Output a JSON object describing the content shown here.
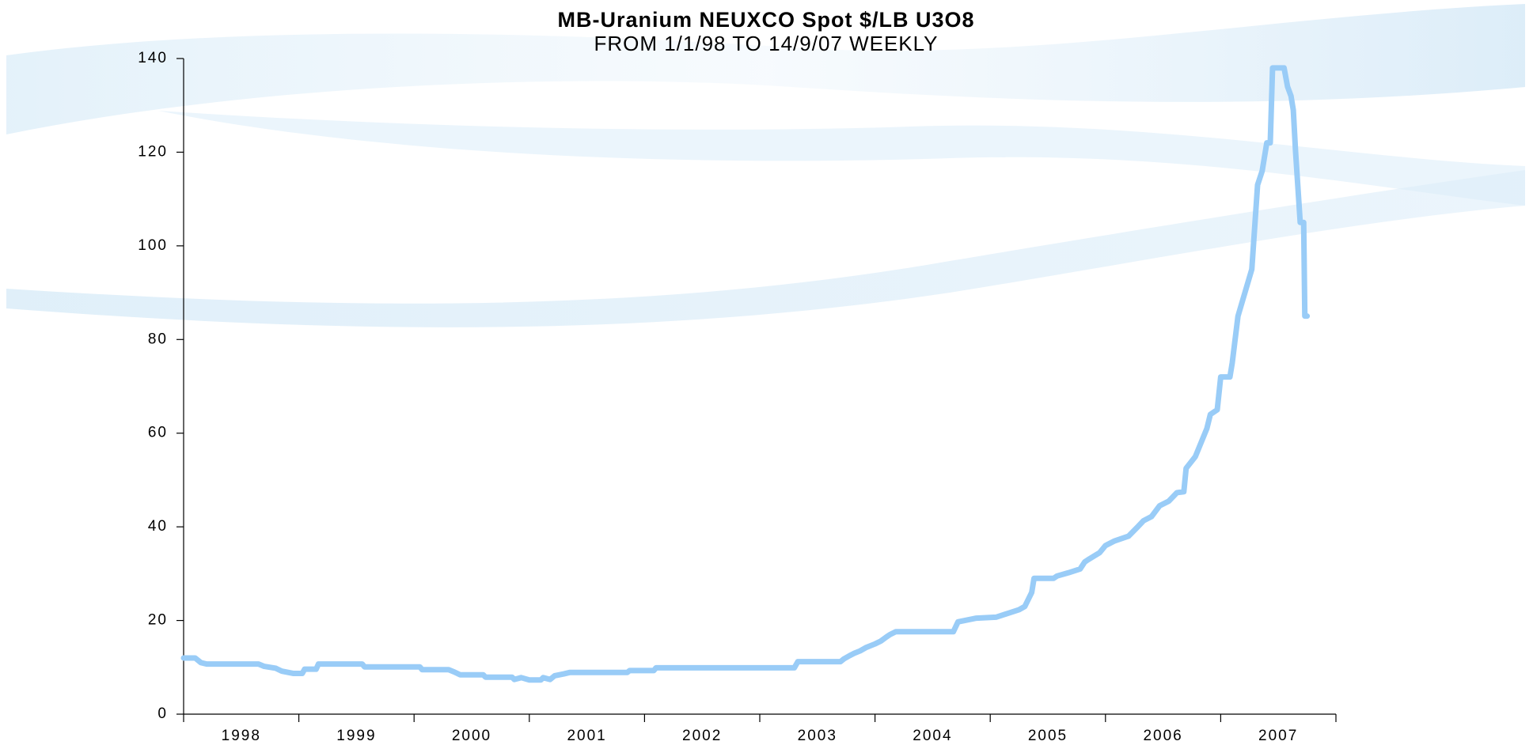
{
  "chart_data": {
    "type": "line",
    "title": "MB-Uranium NEUXCO Spot $/LB U3O8",
    "subtitle": "FROM 1/1/98 TO 14/9/07 WEEKLY",
    "xlim": [
      1998,
      2008
    ],
    "xticks": [
      1998,
      1999,
      2000,
      2001,
      2002,
      2003,
      2004,
      2005,
      2006,
      2007,
      2008
    ],
    "year_labels": [
      "1998",
      "1999",
      "2000",
      "2001",
      "2002",
      "2003",
      "2004",
      "2005",
      "2006",
      "2007"
    ],
    "ylim": [
      0,
      140
    ],
    "yticks": [
      0,
      20,
      40,
      60,
      80,
      100,
      120,
      140
    ],
    "grid": false,
    "series": [
      {
        "name": "MB-Uranium NEUXCO Spot",
        "color": "#99ccf7",
        "x": [
          1998.0,
          1998.1,
          1998.15,
          1998.2,
          1998.65,
          1998.7,
          1998.8,
          1998.85,
          1998.95,
          1999.03,
          1999.05,
          1999.15,
          1999.17,
          1999.55,
          1999.57,
          2000.05,
          2000.07,
          2000.3,
          2000.35,
          2000.4,
          2000.6,
          2000.62,
          2000.85,
          2000.87,
          2000.93,
          2001.0,
          2001.1,
          2001.12,
          2001.18,
          2001.22,
          2001.3,
          2001.35,
          2001.85,
          2001.87,
          2002.08,
          2002.1,
          2003.3,
          2003.33,
          2003.7,
          2003.73,
          2003.78,
          2003.82,
          2003.87,
          2003.92,
          2004.0,
          2004.05,
          2004.1,
          2004.13,
          2004.18,
          2004.68,
          2004.72,
          2004.88,
          2005.05,
          2005.15,
          2005.25,
          2005.3,
          2005.36,
          2005.38,
          2005.55,
          2005.58,
          2005.68,
          2005.78,
          2005.82,
          2005.85,
          2005.95,
          2006.0,
          2006.08,
          2006.2,
          2006.28,
          2006.33,
          2006.4,
          2006.47,
          2006.55,
          2006.62,
          2006.68,
          2006.7,
          2006.78,
          2006.83,
          2006.88,
          2006.91,
          2006.97,
          2007.0,
          2007.08,
          2007.1,
          2007.15,
          2007.27,
          2007.32,
          2007.36,
          2007.4,
          2007.43,
          2007.45,
          2007.55,
          2007.58,
          2007.61,
          2007.63,
          2007.65,
          2007.69,
          2007.72,
          2007.73,
          2007.75
        ],
        "values": [
          12,
          12,
          11,
          10.7,
          10.7,
          10.2,
          9.8,
          9.2,
          8.7,
          8.7,
          9.6,
          9.6,
          10.7,
          10.7,
          10.1,
          10.1,
          9.5,
          9.5,
          9,
          8.4,
          8.4,
          7.9,
          7.9,
          7.4,
          7.8,
          7.3,
          7.3,
          7.8,
          7.4,
          8.2,
          8.6,
          8.9,
          8.9,
          9.3,
          9.3,
          9.9,
          9.9,
          11.2,
          11.2,
          11.8,
          12.5,
          13,
          13.5,
          14.2,
          15,
          15.6,
          16.5,
          17,
          17.6,
          17.6,
          19.7,
          20.5,
          20.7,
          21.5,
          22.3,
          23,
          26,
          29,
          29,
          29.5,
          30.2,
          31,
          32.5,
          33,
          34.5,
          36,
          37,
          38,
          40,
          41.3,
          42.2,
          44.5,
          45.5,
          47.3,
          47.5,
          52.5,
          55,
          58,
          61,
          64,
          65,
          72,
          72,
          75,
          85,
          95,
          113,
          116,
          122,
          122,
          138,
          138,
          134,
          132,
          129,
          120,
          105,
          105,
          85,
          85
        ]
      }
    ]
  }
}
